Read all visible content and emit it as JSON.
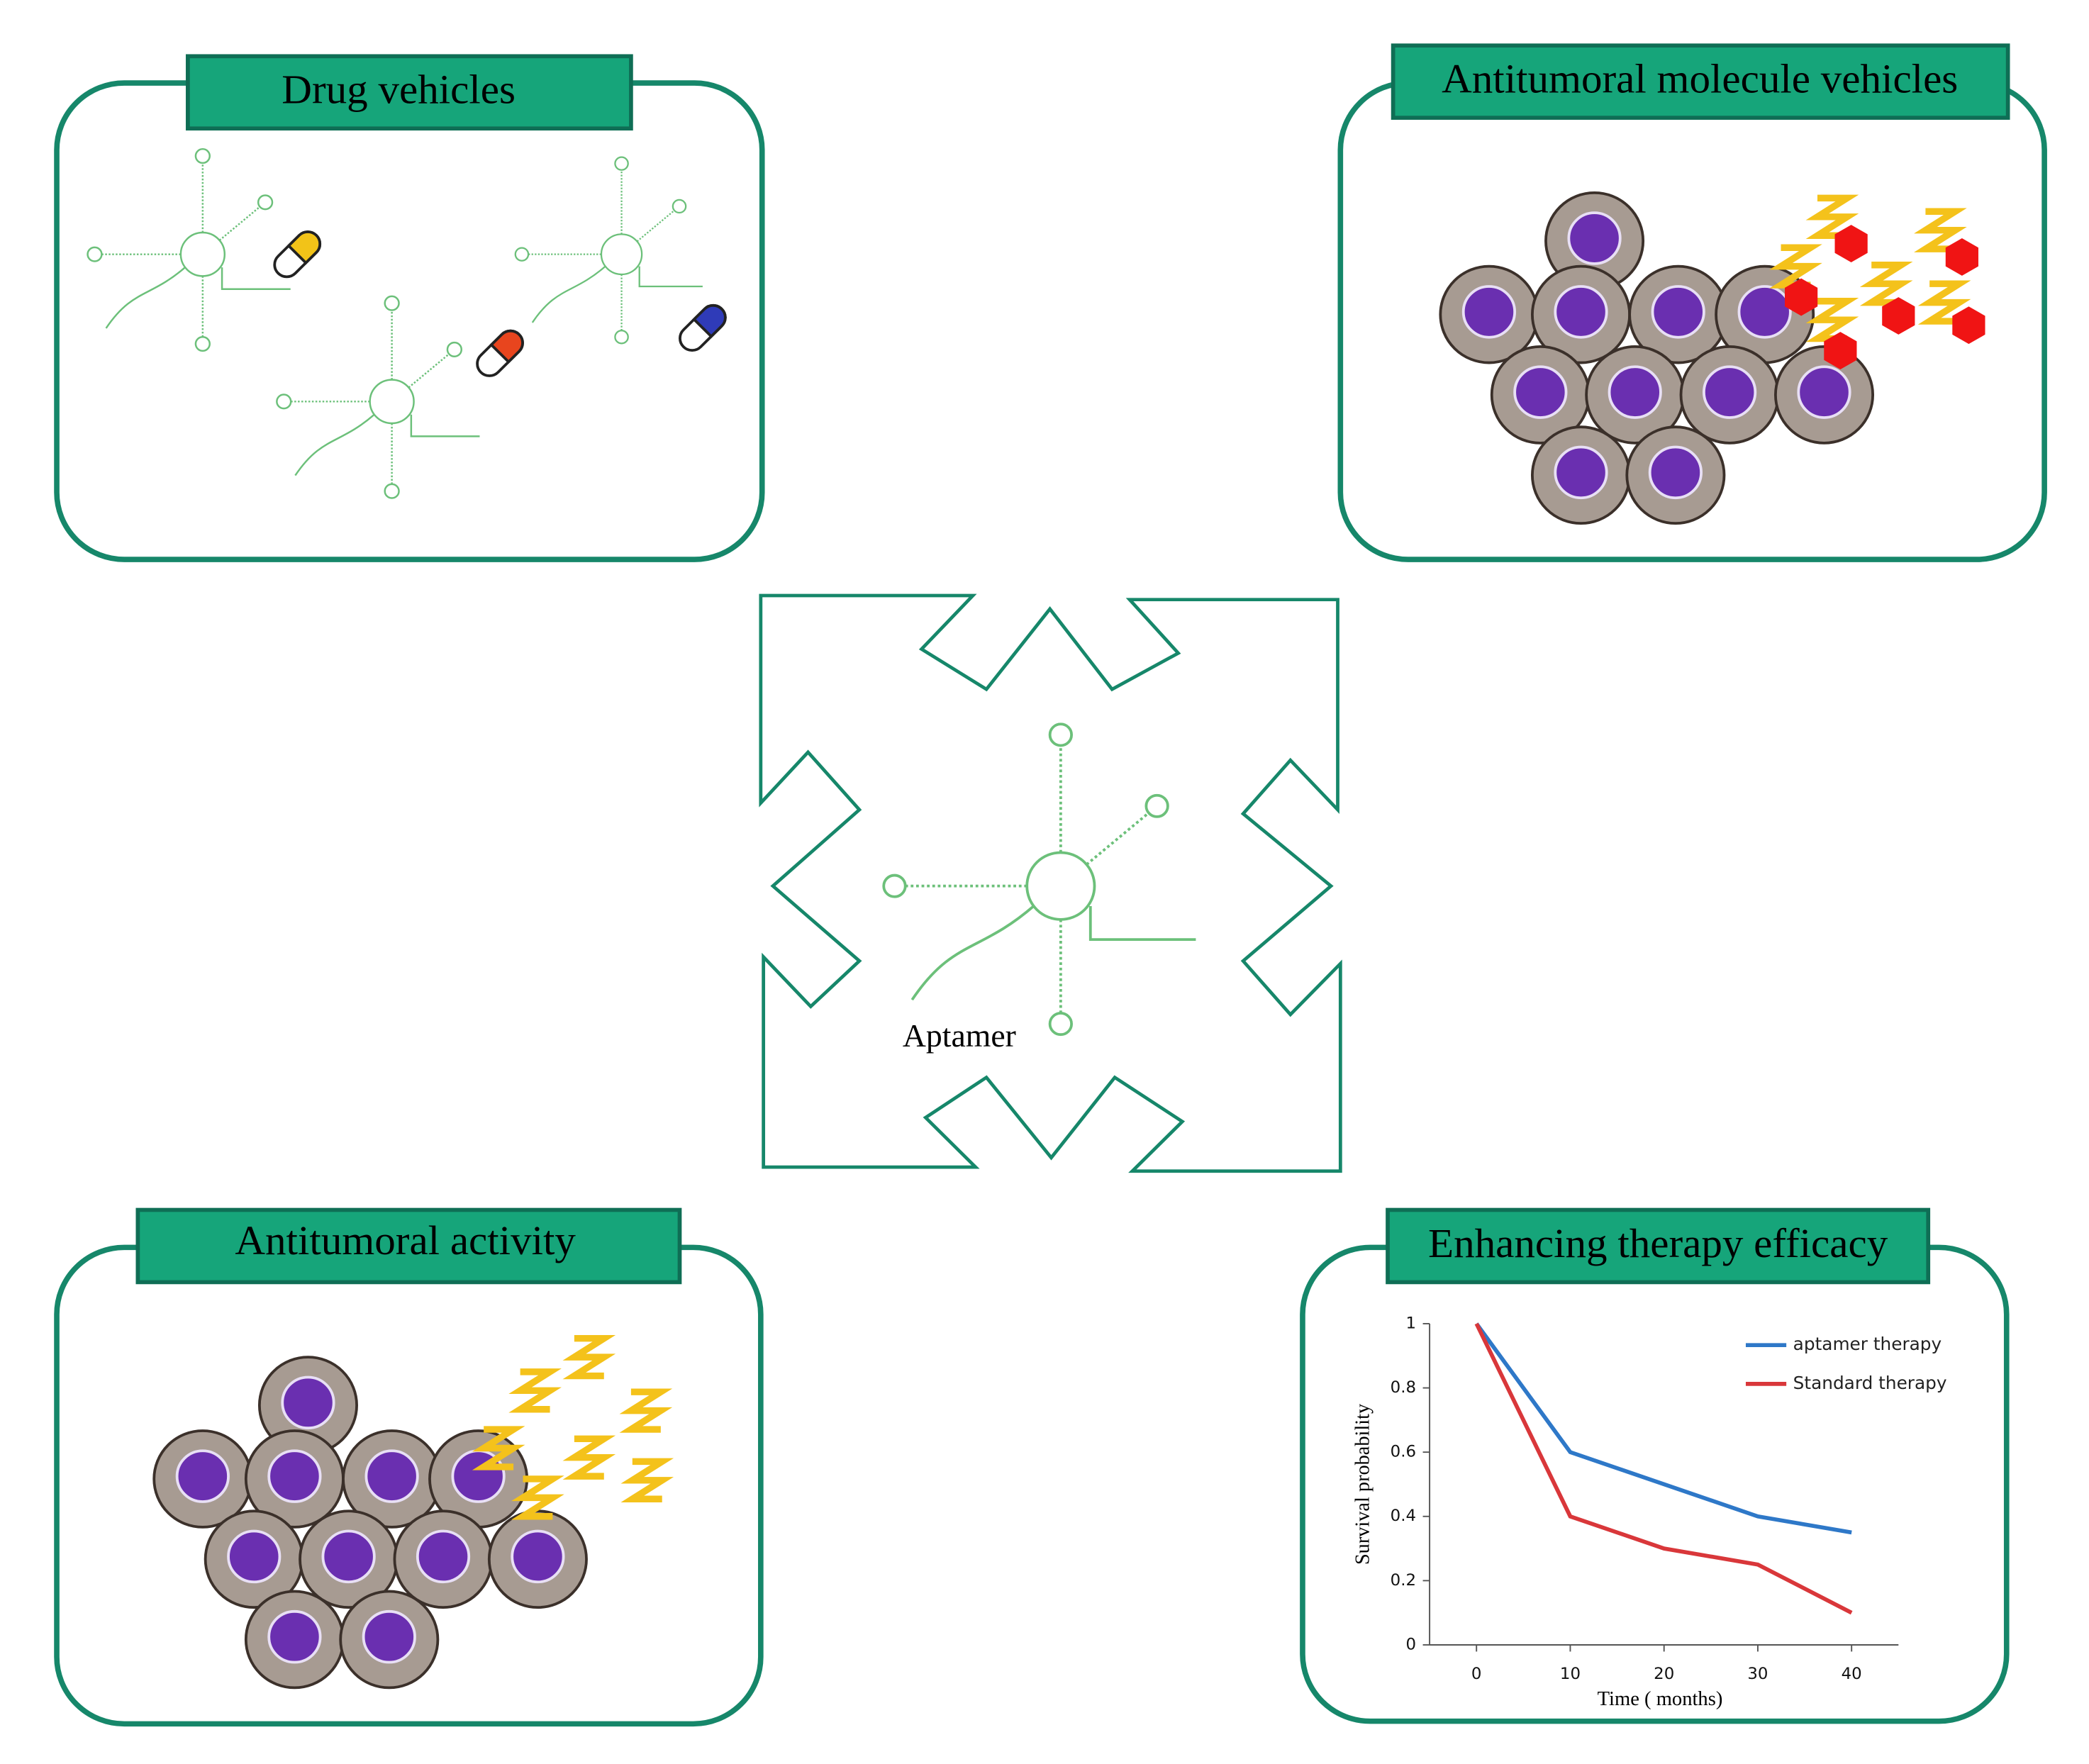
{
  "panels": [
    {
      "title": "Drug vehicles"
    },
    {
      "title": "Antitumoral molecule vehicles"
    },
    {
      "title": "Antitumoral activity"
    },
    {
      "title": "Enhancing therapy efficacy"
    }
  ],
  "center_label": "Aptamer",
  "chart_data": {
    "type": "line",
    "xlabel": "Time ( months)",
    "ylabel": "Survival probability",
    "x": [
      0,
      10,
      20,
      30,
      40
    ],
    "series": [
      {
        "name": "aptamer therapy",
        "color": "#2e78c8",
        "values": [
          1,
          0.6,
          0.5,
          0.4,
          0.35
        ]
      },
      {
        "name": "Standard therapy",
        "color": "#d9373a",
        "values": [
          1,
          0.4,
          0.3,
          0.25,
          0.1
        ]
      }
    ],
    "xlim": [
      -5,
      45
    ],
    "xticks": [
      0,
      10,
      20,
      30,
      40
    ],
    "ylim": [
      0,
      1
    ],
    "yticks": [
      0,
      0.2,
      0.4,
      0.6,
      0.8,
      1
    ],
    "legend": "upper right",
    "grid": false
  }
}
